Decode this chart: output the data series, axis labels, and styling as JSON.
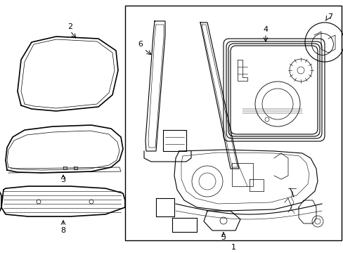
{
  "background_color": "#ffffff",
  "line_color": "#000000",
  "figsize": [
    4.89,
    3.6
  ],
  "dpi": 100,
  "font_size": 8
}
